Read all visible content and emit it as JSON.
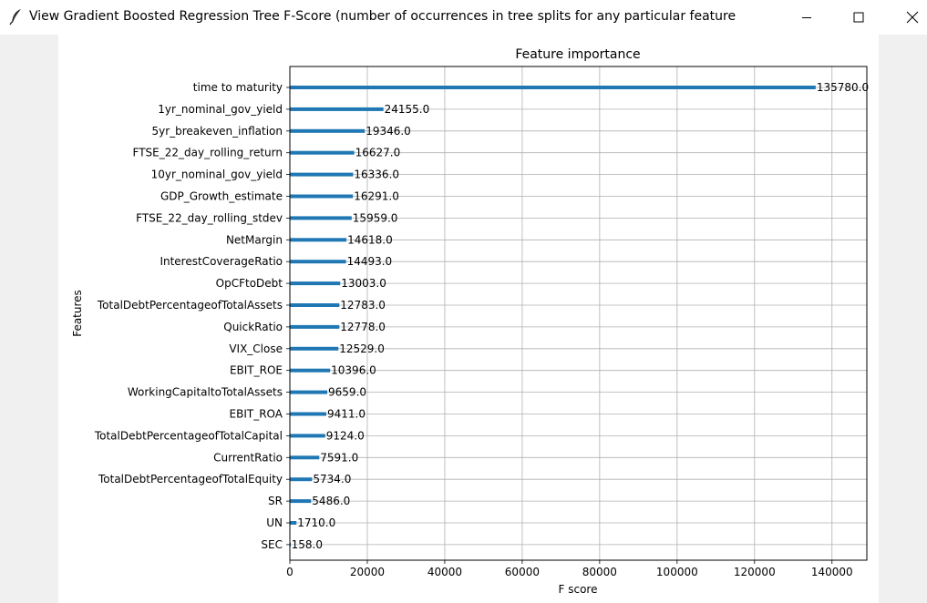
{
  "window": {
    "title": "View Gradient Boosted Regression Tree F-Score (number of occurrences in tree splits for any particular feature",
    "icon": "feather-icon",
    "controls": [
      "minimize-icon",
      "maximize-icon",
      "close-icon"
    ]
  },
  "chart_data": {
    "type": "bar",
    "orientation": "horizontal",
    "title": "Feature importance",
    "xlabel": "F score",
    "ylabel": "Features",
    "xlim": [
      0,
      149000
    ],
    "xticks": [
      0,
      20000,
      40000,
      60000,
      80000,
      100000,
      120000,
      140000
    ],
    "xtick_labels": [
      "0",
      "20000",
      "40000",
      "60000",
      "80000",
      "100000",
      "120000",
      "140000"
    ],
    "grid": true,
    "bar_color": "#1f77b4",
    "categories": [
      "time to maturity",
      "1yr_nominal_gov_yield",
      "5yr_breakeven_inflation",
      "FTSE_22_day_rolling_return",
      "10yr_nominal_gov_yield",
      "GDP_Growth_estimate",
      "FTSE_22_day_rolling_stdev",
      "NetMargin",
      "InterestCoverageRatio",
      "OpCFtoDebt",
      "TotalDebtPercentageofTotalAssets",
      "QuickRatio",
      "VIX_Close",
      "EBIT_ROE",
      "WorkingCapitaltoTotalAssets",
      "EBIT_ROA",
      "TotalDebtPercentageofTotalCapital",
      "CurrentRatio",
      "TotalDebtPercentageofTotalEquity",
      "SR",
      "UN",
      "SEC"
    ],
    "values": [
      135780,
      24155,
      19346,
      16627,
      16336,
      16291,
      15959,
      14618,
      14493,
      13003,
      12783,
      12778,
      12529,
      10396,
      9659,
      9411,
      9124,
      7591,
      5734,
      5486,
      1710,
      158
    ],
    "value_labels": [
      "135780.0",
      "24155.0",
      "19346.0",
      "16627.0",
      "16336.0",
      "16291.0",
      "15959.0",
      "14618.0",
      "14493.0",
      "13003.0",
      "12783.0",
      "12778.0",
      "12529.0",
      "10396.0",
      "9659.0",
      "9411.0",
      "9124.0",
      "7591.0",
      "5734.0",
      "5486.0",
      "1710.0",
      "158.0"
    ]
  }
}
